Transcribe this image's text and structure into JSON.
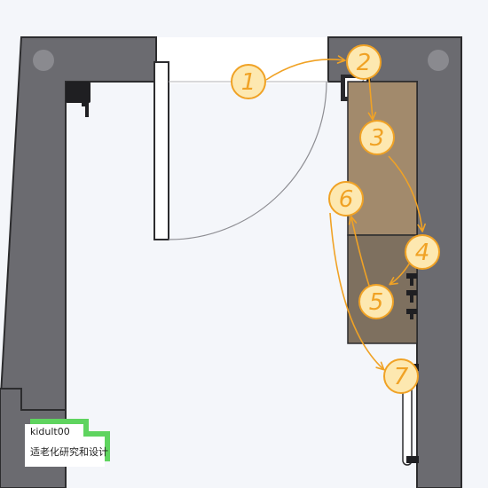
{
  "colors": {
    "wall": "#6b6b70",
    "wall_outline": "#2c2c2e",
    "floor": "#f4f6fa",
    "cabinet_wood": "#a28a6c",
    "cabinet_dark": "#7e705f",
    "step_fill": "#fde8b0",
    "step_stroke": "#f0a225",
    "arrow": "#f0a225",
    "watermark_green": "#5fd45f"
  },
  "steps": [
    {
      "label": "1"
    },
    {
      "label": "2"
    },
    {
      "label": "3"
    },
    {
      "label": "4"
    },
    {
      "label": "5"
    },
    {
      "label": "6"
    },
    {
      "label": "7"
    }
  ],
  "watermark": {
    "handle": "kidult00",
    "subtitle": "适老化研究和设计"
  },
  "icons": {
    "wall_lamp": "wall-lamp-icon",
    "switch": "light-switch-icon",
    "faucets": "faucet-icon",
    "grab_bar": "grab-bar-icon"
  }
}
